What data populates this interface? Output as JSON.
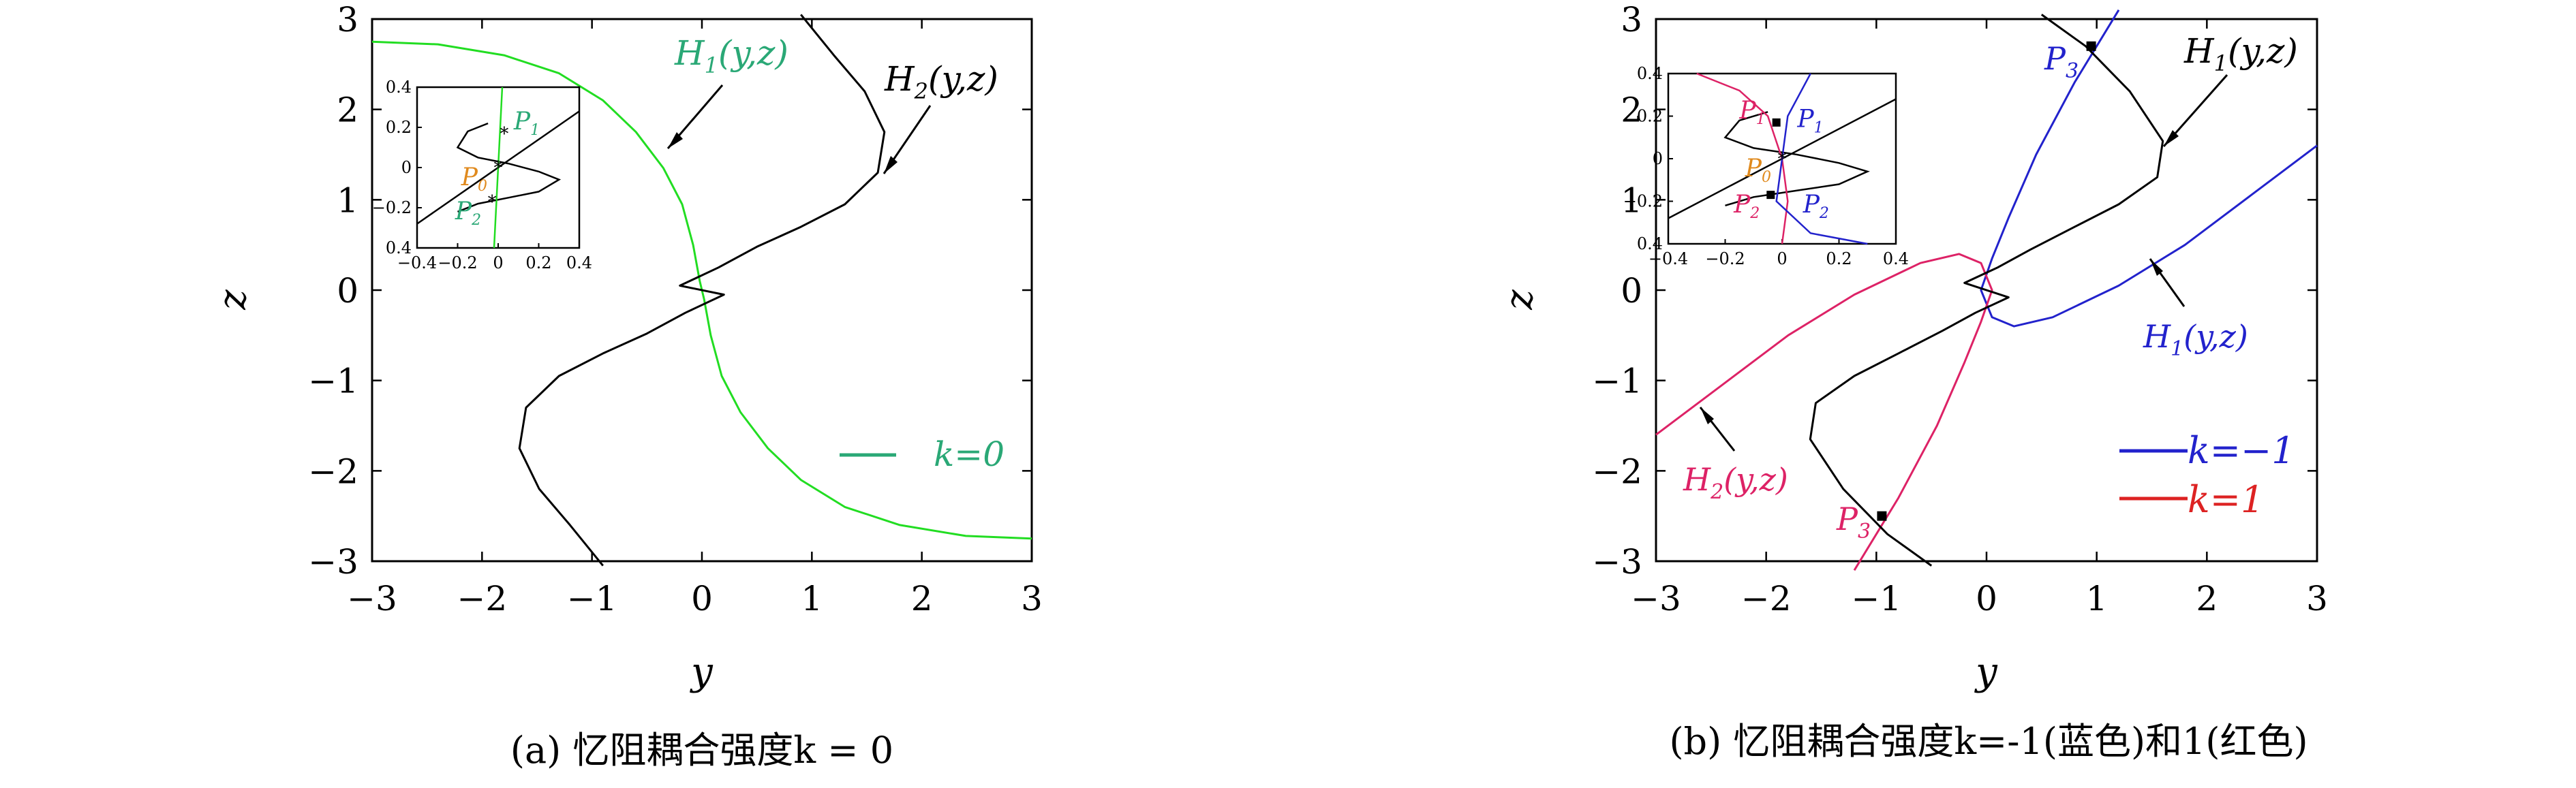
{
  "chart_data": [
    {
      "type": "line",
      "caption": "(a) 忆阻耦合强度k = 0",
      "xlabel": "y",
      "ylabel": "z",
      "xlim": [
        -3,
        3
      ],
      "ylim": [
        -3,
        3
      ],
      "xticks": [
        "−3",
        "−2",
        "−1",
        "0",
        "1",
        "2",
        "3"
      ],
      "yticks": [
        "3",
        "2",
        "1",
        "0",
        "−1",
        "−2",
        "−3"
      ],
      "grid": false,
      "legend": {
        "position": "lower-right",
        "entries": [
          {
            "label": "k=0",
            "color": "#2aa876"
          }
        ]
      },
      "series": [
        {
          "name": "H1(y,z)",
          "label_color": "#2aa876",
          "color": "#22dd22",
          "points": [
            [
              -3,
              2.75
            ],
            [
              -2.4,
              2.72
            ],
            [
              -1.8,
              2.6
            ],
            [
              -1.3,
              2.4
            ],
            [
              -0.9,
              2.1
            ],
            [
              -0.6,
              1.75
            ],
            [
              -0.35,
              1.35
            ],
            [
              -0.18,
              0.95
            ],
            [
              -0.08,
              0.5
            ],
            [
              -0.02,
              0.1
            ],
            [
              0.02,
              -0.1
            ],
            [
              0.08,
              -0.5
            ],
            [
              0.18,
              -0.95
            ],
            [
              0.35,
              -1.35
            ],
            [
              0.6,
              -1.75
            ],
            [
              0.9,
              -2.1
            ],
            [
              1.3,
              -2.4
            ],
            [
              1.8,
              -2.6
            ],
            [
              2.4,
              -2.72
            ],
            [
              3,
              -2.75
            ]
          ]
        },
        {
          "name": "H2(y,z)",
          "label_color": "#000000",
          "color": "#000000",
          "points": [
            [
              0.9,
              3.05
            ],
            [
              1.2,
              2.6
            ],
            [
              1.48,
              2.2
            ],
            [
              1.66,
              1.75
            ],
            [
              1.6,
              1.3
            ],
            [
              1.3,
              0.95
            ],
            [
              0.9,
              0.7
            ],
            [
              0.5,
              0.48
            ],
            [
              0.15,
              0.25
            ],
            [
              -0.2,
              0.05
            ],
            [
              0.2,
              -0.05
            ],
            [
              -0.15,
              -0.25
            ],
            [
              -0.5,
              -0.48
            ],
            [
              -0.9,
              -0.7
            ],
            [
              -1.3,
              -0.95
            ],
            [
              -1.6,
              -1.3
            ],
            [
              -1.66,
              -1.75
            ],
            [
              -1.48,
              -2.2
            ],
            [
              -1.2,
              -2.6
            ],
            [
              -0.9,
              -3.05
            ]
          ]
        }
      ],
      "annotations": [
        {
          "text": "H1(y,z)",
          "base": "H",
          "sub": "1",
          "rest": "(y,z)",
          "color": "#2aa876"
        },
        {
          "text": "H2(y,z)",
          "base": "H",
          "sub": "2",
          "rest": "(y,z)",
          "color": "#000000"
        }
      ],
      "inset": {
        "xlim": [
          -0.4,
          0.4
        ],
        "ylim": [
          -0.4,
          0.4
        ],
        "xticks": [
          "−0.4",
          "−0.2",
          "0",
          "0.2",
          "0.4"
        ],
        "yticks": [
          "0.4",
          "0.2",
          "0",
          "−0.2",
          "0.4"
        ],
        "line": [
          [
            -0.4,
            -0.28
          ],
          [
            0.4,
            0.28
          ]
        ],
        "curve": [
          [
            -0.05,
            0.22
          ],
          [
            -0.15,
            0.18
          ],
          [
            -0.2,
            0.1
          ],
          [
            -0.1,
            0.05
          ],
          [
            0.05,
            0.02
          ],
          [
            0.2,
            -0.02
          ],
          [
            0.3,
            -0.06
          ],
          [
            0.2,
            -0.12
          ],
          [
            0.05,
            -0.15
          ],
          [
            -0.1,
            -0.18
          ],
          [
            -0.2,
            -0.22
          ]
        ],
        "green_line": [
          [
            0.02,
            0.4
          ],
          [
            -0.02,
            -0.4
          ]
        ],
        "points": [
          {
            "label": "P1",
            "base": "P",
            "sub": "1",
            "y": 0.03,
            "z": 0.17,
            "color": "#2aa876",
            "marker": "star"
          },
          {
            "label": "P0",
            "base": "P",
            "sub": "0",
            "y": 0.0,
            "z": 0.0,
            "color": "#e08a1e",
            "marker": "star"
          },
          {
            "label": "P2",
            "base": "P",
            "sub": "2",
            "y": -0.03,
            "z": -0.17,
            "color": "#2aa876",
            "marker": "star"
          }
        ]
      }
    },
    {
      "type": "line",
      "caption": "(b) 忆阻耦合强度k=-1(蓝色)和1(红色)",
      "xlabel": "y",
      "ylabel": "z",
      "xlim": [
        -3,
        3
      ],
      "ylim": [
        -3,
        3
      ],
      "xticks": [
        "−3",
        "−2",
        "−1",
        "0",
        "1",
        "2",
        "3"
      ],
      "yticks": [
        "3",
        "2",
        "1",
        "0",
        "−1",
        "−2",
        "−3"
      ],
      "grid": false,
      "legend": {
        "position": "lower-right",
        "entries": [
          {
            "label": "k=−1",
            "color": "#2222cc"
          },
          {
            "label": "k=1",
            "color": "#dd2222"
          }
        ]
      },
      "series": [
        {
          "name": "H1(y,z)",
          "label_color": "#2222cc",
          "color": "#2222cc",
          "points": [
            [
              1.2,
              3.1
            ],
            [
              0.8,
              2.3
            ],
            [
              0.45,
              1.5
            ],
            [
              0.2,
              0.8
            ],
            [
              0.05,
              0.35
            ],
            [
              -0.05,
              0.0
            ],
            [
              0.05,
              -0.3
            ],
            [
              0.25,
              -0.4
            ],
            [
              0.6,
              -0.3
            ],
            [
              1.2,
              0.05
            ],
            [
              1.8,
              0.5
            ],
            [
              2.4,
              1.05
            ],
            [
              3,
              1.6
            ]
          ]
        },
        {
          "name": "H2(y,z)",
          "label_color": "#dd2266",
          "color": "#dd2266",
          "points": [
            [
              -1.2,
              -3.1
            ],
            [
              -0.8,
              -2.3
            ],
            [
              -0.45,
              -1.5
            ],
            [
              -0.2,
              -0.8
            ],
            [
              -0.05,
              -0.35
            ],
            [
              0.05,
              0.0
            ],
            [
              -0.05,
              0.3
            ],
            [
              -0.25,
              0.4
            ],
            [
              -0.6,
              0.3
            ],
            [
              -1.2,
              -0.05
            ],
            [
              -1.8,
              -0.5
            ],
            [
              -2.4,
              -1.05
            ],
            [
              -3,
              -1.6
            ]
          ]
        },
        {
          "name": "H1(y,z) black",
          "label_color": "#000000",
          "color": "#000000",
          "points": [
            [
              0.5,
              3.05
            ],
            [
              0.9,
              2.7
            ],
            [
              1.3,
              2.2
            ],
            [
              1.6,
              1.65
            ],
            [
              1.55,
              1.25
            ],
            [
              1.2,
              0.95
            ],
            [
              0.8,
              0.7
            ],
            [
              0.4,
              0.45
            ],
            [
              0.1,
              0.25
            ],
            [
              -0.2,
              0.08
            ],
            [
              0.2,
              -0.08
            ],
            [
              -0.1,
              -0.25
            ],
            [
              -0.4,
              -0.45
            ],
            [
              -0.8,
              -0.7
            ],
            [
              -1.2,
              -0.95
            ],
            [
              -1.55,
              -1.25
            ],
            [
              -1.6,
              -1.65
            ],
            [
              -1.3,
              -2.2
            ],
            [
              -0.9,
              -2.7
            ],
            [
              -0.5,
              -3.05
            ]
          ]
        }
      ],
      "annotations": [
        {
          "text": "H1(y,z)",
          "base": "H",
          "sub": "1",
          "rest": "(y,z)",
          "color": "#000000"
        },
        {
          "text": "H1(y,z)",
          "base": "H",
          "sub": "1",
          "rest": "(y,z)",
          "color": "#2222cc"
        },
        {
          "text": "H2(y,z)",
          "base": "H",
          "sub": "2",
          "rest": "(y,z)",
          "color": "#dd2266"
        },
        {
          "text": "P3",
          "base": "P",
          "sub": "3",
          "y": 0.95,
          "z": 2.7,
          "color": "#2222cc"
        },
        {
          "text": "P3",
          "base": "P",
          "sub": "3",
          "y": -0.95,
          "z": -2.5,
          "color": "#dd2266"
        }
      ],
      "inset": {
        "xlim": [
          -0.4,
          0.4
        ],
        "ylim": [
          -0.4,
          0.4
        ],
        "xticks": [
          "−0.4",
          "−0.2",
          "0",
          "0.2",
          "0.4"
        ],
        "yticks": [
          "0.4",
          "0.2",
          "0",
          "−0.2",
          "0.4"
        ],
        "line": [
          [
            -0.4,
            -0.28
          ],
          [
            0.4,
            0.28
          ]
        ],
        "curve": [
          [
            -0.05,
            0.22
          ],
          [
            -0.15,
            0.18
          ],
          [
            -0.2,
            0.1
          ],
          [
            -0.1,
            0.05
          ],
          [
            0.05,
            0.02
          ],
          [
            0.2,
            -0.02
          ],
          [
            0.3,
            -0.06
          ],
          [
            0.2,
            -0.12
          ],
          [
            0.05,
            -0.15
          ],
          [
            -0.1,
            -0.18
          ],
          [
            -0.2,
            -0.22
          ]
        ],
        "red_curve": [
          [
            -0.3,
            0.4
          ],
          [
            -0.15,
            0.32
          ],
          [
            -0.05,
            0.2
          ],
          [
            0.0,
            0.0
          ],
          [
            0.02,
            -0.2
          ],
          [
            0.0,
            -0.4
          ]
        ],
        "blue_curve": [
          [
            0.1,
            0.4
          ],
          [
            0.02,
            0.2
          ],
          [
            0.0,
            0.0
          ],
          [
            -0.02,
            -0.2
          ],
          [
            0.1,
            -0.35
          ],
          [
            0.3,
            -0.4
          ]
        ],
        "points": [
          {
            "label": "P1",
            "base": "P",
            "sub": "1",
            "y": -0.02,
            "z": 0.17,
            "color": "#dd2266",
            "marker": "square"
          },
          {
            "label": "P1",
            "base": "P",
            "sub": "1",
            "y": 0.02,
            "z": 0.13,
            "color": "#2222cc",
            "marker": "none"
          },
          {
            "label": "P0",
            "base": "P",
            "sub": "0",
            "y": 0.0,
            "z": 0.0,
            "color": "#e08a1e",
            "marker": "star"
          },
          {
            "label": "P2",
            "base": "P",
            "sub": "2",
            "y": -0.04,
            "z": -0.17,
            "color": "#dd2266",
            "marker": "square"
          },
          {
            "label": "P2",
            "base": "P",
            "sub": "2",
            "y": 0.04,
            "z": -0.17,
            "color": "#2222cc",
            "marker": "none"
          }
        ]
      }
    }
  ]
}
